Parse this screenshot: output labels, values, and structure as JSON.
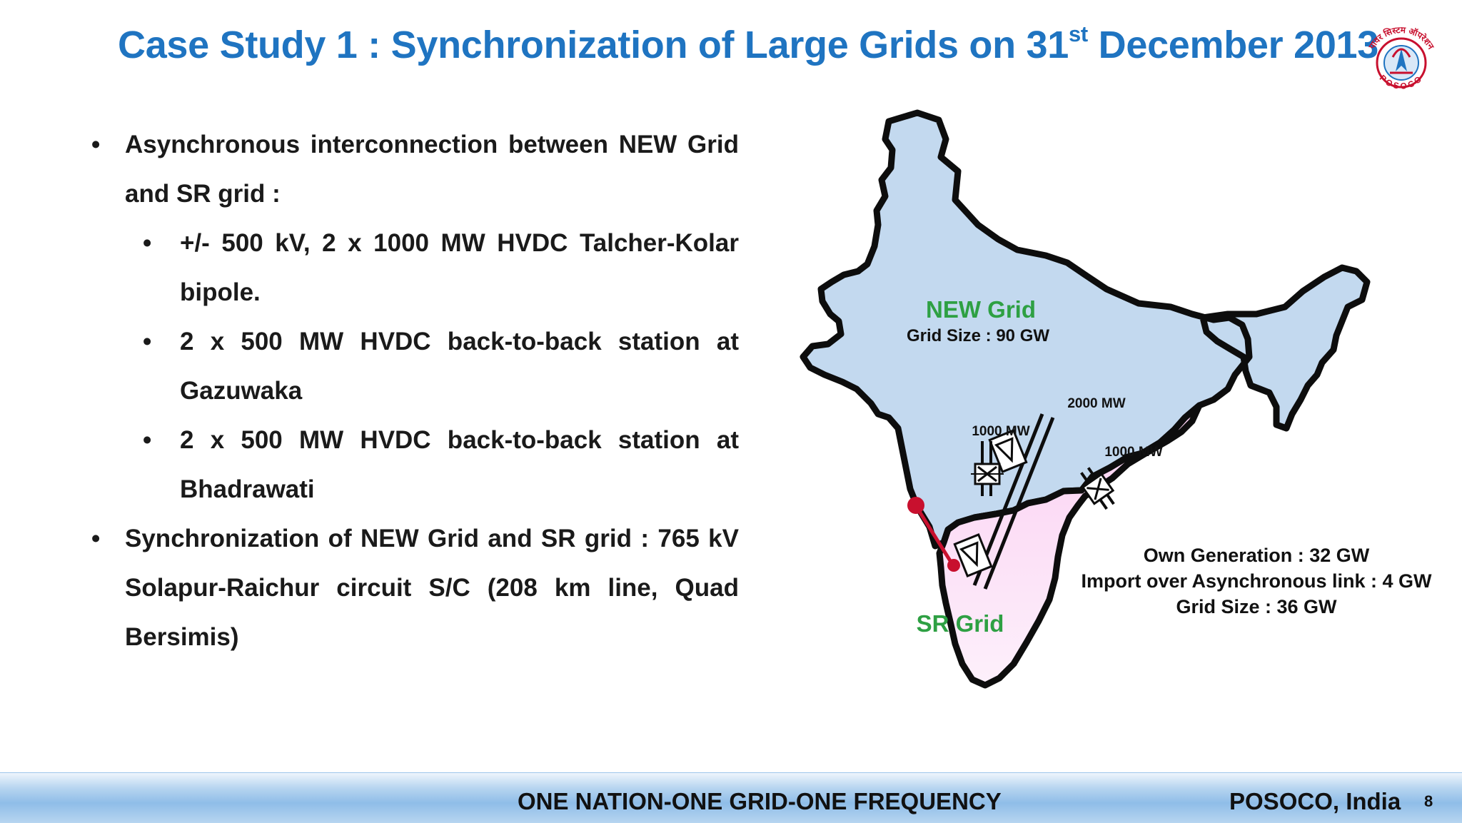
{
  "title": {
    "pre": "Case Study 1 : Synchronization of Large Grids on 31",
    "sup": "st",
    "post": " December 2013"
  },
  "logo": {
    "text": "पावर सिस्टम ऑपरेशन",
    "name": "POSOCO",
    "colors": {
      "ring": "#c8102e",
      "center": "#1f74c1"
    }
  },
  "bullets": [
    {
      "text": "Asynchronous interconnection between NEW Grid and SR grid :",
      "children": [
        {
          "text": "+/- 500 kV, 2 x 1000 MW HVDC Talcher-Kolar bipole."
        },
        {
          "text": "2 x 500 MW HVDC back-to-back station at Gazuwaka"
        },
        {
          "text": "2 x 500 MW HVDC back-to-back station at Bhadrawati"
        }
      ]
    },
    {
      "text": "Synchronization of NEW Grid and SR grid : 765 kV Solapur-Raichur circuit S/C (208 km line, Quad Bersimis)",
      "children": []
    }
  ],
  "map": {
    "new_grid": {
      "label": "NEW Grid",
      "size": "Grid Size : 90 GW",
      "color": "#c3d9ef"
    },
    "sr_grid": {
      "label": "SR Grid",
      "color": "#fbd4f3"
    },
    "links": [
      {
        "label": "1000 MW"
      },
      {
        "label": "2000 MW"
      },
      {
        "label": "1000 MW"
      }
    ],
    "label_color": "#2ea043",
    "tie_line_color": "#c8102e"
  },
  "sr_stats": [
    "Own Generation : 32 GW",
    "Import over Asynchronous link : 4 GW",
    "Grid Size : 36 GW"
  ],
  "footer": {
    "center": "ONE NATION-ONE GRID-ONE FREQUENCY",
    "right": "POSOCO, India",
    "page": "8"
  }
}
